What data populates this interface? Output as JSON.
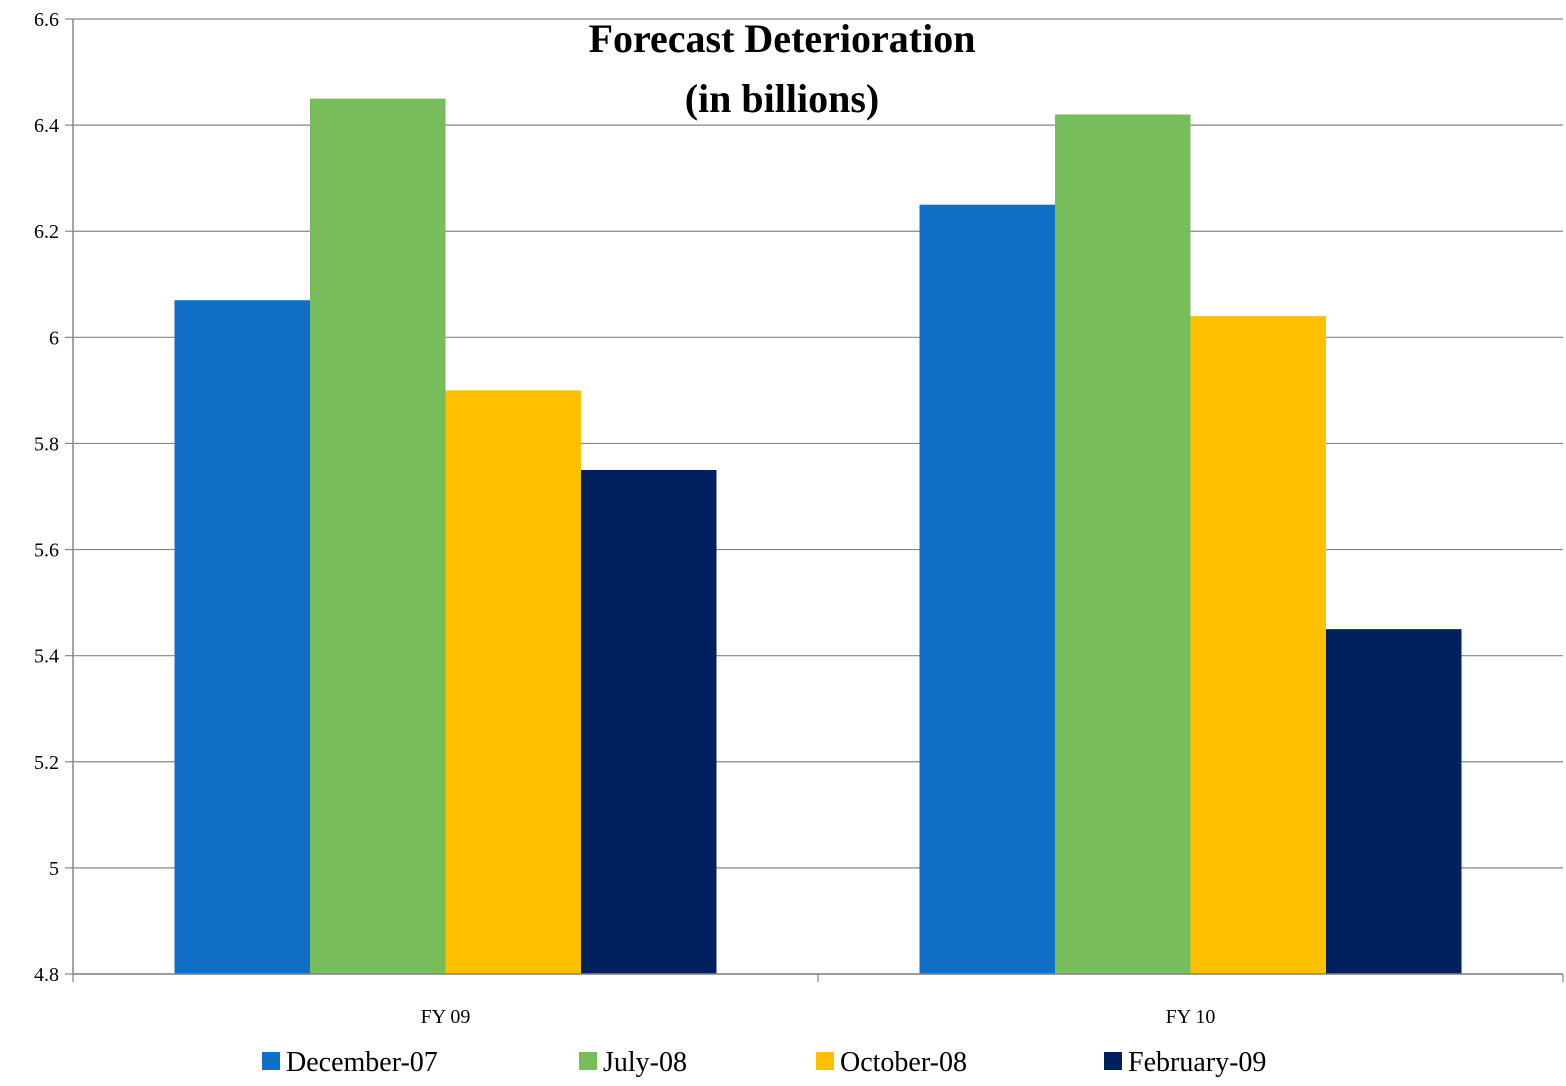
{
  "chart_data": {
    "type": "bar",
    "title": "Forecast Deterioration",
    "subtitle": "(in billions)",
    "xlabel": "",
    "ylabel": "",
    "categories": [
      "FY 09",
      "FY 10"
    ],
    "series": [
      {
        "name": "December-07",
        "color": "#1170C6",
        "values": [
          6.07,
          6.25
        ]
      },
      {
        "name": "July-08",
        "color": "#77BD5B",
        "values": [
          6.45,
          6.42
        ]
      },
      {
        "name": "October-08",
        "color": "#FFC000",
        "values": [
          5.9,
          6.04
        ]
      },
      {
        "name": "February-09",
        "color": "#00215E",
        "values": [
          5.75,
          5.45
        ]
      }
    ],
    "ylim": [
      4.8,
      6.6
    ],
    "yticks": [
      "4.8",
      "5",
      "5.2",
      "5.4",
      "5.6",
      "5.8",
      "6",
      "6.2",
      "6.4",
      "6.6"
    ],
    "grid": true,
    "legend_position": "bottom"
  }
}
